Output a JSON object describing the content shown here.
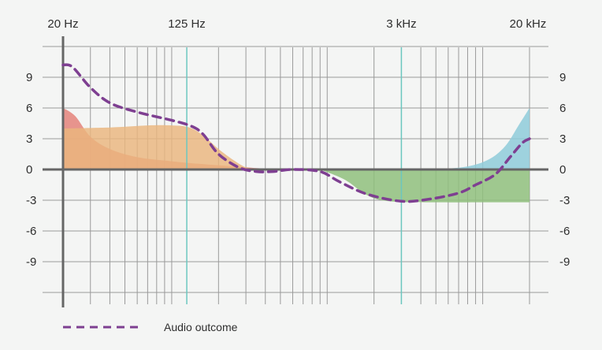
{
  "chart_data": {
    "type": "area",
    "x_scale": "log",
    "x_unit": "Hz",
    "xlim": [
      20,
      20000
    ],
    "ylim": [
      -12,
      12
    ],
    "grid": true,
    "legend_position": "bottom-left",
    "x_tick_labels": [
      {
        "value": 20,
        "label": "20 Hz"
      },
      {
        "value": 125,
        "label": "125 Hz"
      },
      {
        "value": 3000,
        "label": "3 kHz"
      },
      {
        "value": 20000,
        "label": "20 kHz"
      }
    ],
    "highlight_lines": [
      125,
      3000
    ],
    "y_ticks": [
      9,
      6,
      3,
      0,
      -3,
      -6,
      -9
    ],
    "y_tick_labels": [
      "9",
      "6",
      "3",
      "0",
      "-3",
      "-6",
      "-9"
    ],
    "colors": {
      "red_band": "#e4827a",
      "orange_band": "#eab67e",
      "green_band": "#8fc07c",
      "blue_band": "#8ecbd9",
      "outcome": "#7e3f91",
      "highlight": "#6cc7c0",
      "grid": "#9a9a9a",
      "axis": "#666666"
    },
    "series": [
      {
        "key": "red_band",
        "points": [
          [
            20,
            6
          ],
          [
            24,
            5.2
          ],
          [
            30,
            3.2
          ],
          [
            40,
            2
          ],
          [
            60,
            1.2
          ],
          [
            100,
            0.8
          ],
          [
            150,
            0.55
          ],
          [
            250,
            0.3
          ],
          [
            400,
            0.08
          ],
          [
            550,
            0
          ]
        ]
      },
      {
        "key": "orange_band",
        "points": [
          [
            20,
            4
          ],
          [
            40,
            4.1
          ],
          [
            70,
            4.3
          ],
          [
            100,
            4.3
          ],
          [
            130,
            4.1
          ],
          [
            160,
            3.3
          ],
          [
            200,
            2
          ],
          [
            250,
            0.9
          ],
          [
            300,
            0.2
          ],
          [
            350,
            0
          ]
        ]
      },
      {
        "key": "green_band",
        "points": [
          [
            900,
            0
          ],
          [
            1300,
            -1
          ],
          [
            1800,
            -2.5
          ],
          [
            2500,
            -3.1
          ],
          [
            5000,
            -3.2
          ],
          [
            20000,
            -3.2
          ]
        ]
      },
      {
        "key": "blue_band",
        "points": [
          [
            5000,
            0
          ],
          [
            8000,
            0.3
          ],
          [
            11000,
            1
          ],
          [
            14000,
            2.3
          ],
          [
            17000,
            4.3
          ],
          [
            20000,
            6
          ]
        ]
      },
      {
        "key": "outcome",
        "name": "Audio outcome",
        "points": [
          [
            20,
            10.2
          ],
          [
            23,
            10
          ],
          [
            30,
            8
          ],
          [
            40,
            6.5
          ],
          [
            60,
            5.6
          ],
          [
            100,
            4.8
          ],
          [
            135,
            4.2
          ],
          [
            160,
            3.4
          ],
          [
            200,
            1.5
          ],
          [
            270,
            0.2
          ],
          [
            350,
            -0.2
          ],
          [
            450,
            -0.2
          ],
          [
            600,
            0
          ],
          [
            900,
            -0.2
          ],
          [
            1200,
            -1.2
          ],
          [
            1800,
            -2.4
          ],
          [
            3000,
            -3.1
          ],
          [
            4500,
            -2.9
          ],
          [
            7000,
            -2.3
          ],
          [
            9000,
            -1.5
          ],
          [
            12000,
            -0.5
          ],
          [
            15000,
            1.2
          ],
          [
            18000,
            2.6
          ],
          [
            20000,
            3
          ]
        ]
      }
    ]
  }
}
